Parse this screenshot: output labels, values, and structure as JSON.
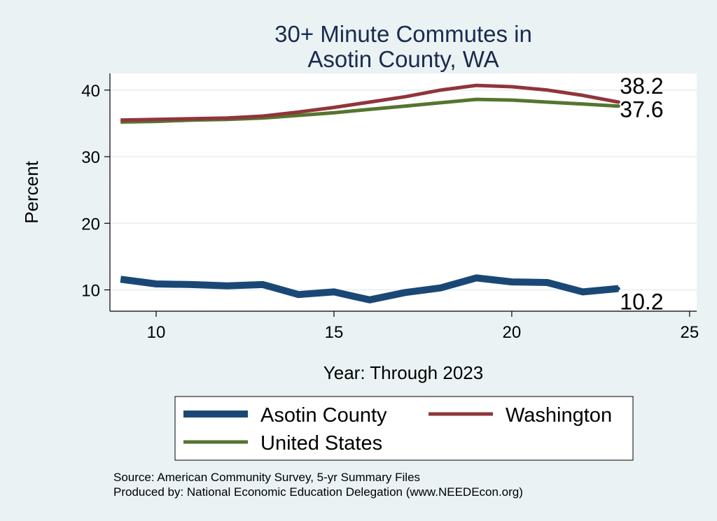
{
  "chart_data": {
    "type": "line",
    "title": [
      "30+ Minute Commutes in",
      "Asotin County, WA"
    ],
    "xlabel": "Year: Through 2023",
    "ylabel": "Percent",
    "xlim": [
      8.7,
      25.2
    ],
    "ylim": [
      6.8,
      42.5
    ],
    "xticks": [
      10,
      15,
      20,
      25
    ],
    "yticks": [
      10,
      20,
      30,
      40
    ],
    "grid": true,
    "legend_position": "bottom",
    "x": [
      9,
      10,
      11,
      12,
      13,
      14,
      15,
      16,
      17,
      18,
      19,
      20,
      21,
      22,
      23
    ],
    "series": [
      {
        "name": "Asotin County",
        "color": "#1a4876",
        "width": 10,
        "values": [
          11.6,
          10.9,
          10.8,
          10.6,
          10.8,
          9.3,
          9.7,
          8.5,
          9.6,
          10.3,
          11.8,
          11.2,
          11.1,
          9.7,
          10.2
        ],
        "end_label": "10.2"
      },
      {
        "name": "Washington",
        "color": "#90353b",
        "width": 5,
        "values": [
          35.5,
          35.6,
          35.7,
          35.8,
          36.1,
          36.7,
          37.4,
          38.2,
          39.0,
          40.0,
          40.7,
          40.5,
          40.0,
          39.2,
          38.2
        ],
        "end_label": "38.2"
      },
      {
        "name": "United States",
        "color": "#55752f",
        "width": 5,
        "values": [
          35.2,
          35.3,
          35.5,
          35.6,
          35.8,
          36.2,
          36.6,
          37.1,
          37.6,
          38.1,
          38.6,
          38.5,
          38.2,
          37.9,
          37.6
        ],
        "end_label": "37.6"
      }
    ],
    "source_lines": [
      "Source: American Community Survey, 5-yr Summary Files",
      "Produced by: National Economic Education Delegation (www.NEEDEcon.org)"
    ]
  }
}
